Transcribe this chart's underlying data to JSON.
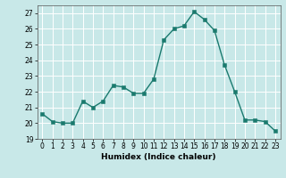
{
  "x": [
    0,
    1,
    2,
    3,
    4,
    5,
    6,
    7,
    8,
    9,
    10,
    11,
    12,
    13,
    14,
    15,
    16,
    17,
    18,
    19,
    20,
    21,
    22,
    23
  ],
  "y": [
    20.6,
    20.1,
    20.0,
    20.0,
    21.4,
    21.0,
    21.4,
    22.4,
    22.3,
    21.9,
    21.9,
    22.8,
    25.3,
    26.0,
    26.2,
    27.1,
    26.6,
    25.9,
    23.7,
    22.0,
    20.2,
    20.2,
    20.1,
    19.5
  ],
  "line_color": "#1a7a6e",
  "marker_color": "#1a7a6e",
  "bg_color": "#c8e8e8",
  "grid_color": "#ffffff",
  "xlabel": "Humidex (Indice chaleur)",
  "ylim": [
    19,
    27.5
  ],
  "yticks": [
    19,
    20,
    21,
    22,
    23,
    24,
    25,
    26,
    27
  ],
  "xticks": [
    0,
    1,
    2,
    3,
    4,
    5,
    6,
    7,
    8,
    9,
    10,
    11,
    12,
    13,
    14,
    15,
    16,
    17,
    18,
    19,
    20,
    21,
    22,
    23
  ],
  "xlim": [
    -0.5,
    23.5
  ],
  "label_fontsize": 6.5,
  "tick_fontsize": 5.5,
  "line_width": 1.0,
  "marker_size": 2.5
}
